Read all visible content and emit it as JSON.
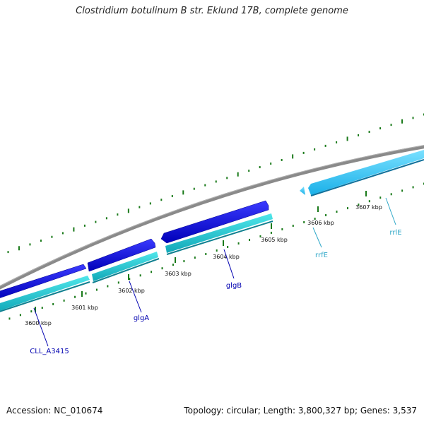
{
  "title": "Clostridium botulinum B str. Eklund 17B, complete genome",
  "footer": {
    "accession": "Accession: NC_010674",
    "summary": "Topology: circular; Length: 3,800,327 bp; Genes: 3,537"
  },
  "colors": {
    "backbone": "#8c8c8c",
    "gene_dark": "#1010e0",
    "gene_cyan": "#20c8d0",
    "rrna": "#40c8f0",
    "ticks": "#1a7a1a",
    "label_gene": "#0000b0",
    "label_rrna": "#30a8c8"
  },
  "ticks": [
    {
      "label": "3600 kbp"
    },
    {
      "label": "3601 kbp"
    },
    {
      "label": "3602 kbp"
    },
    {
      "label": "3603 kbp"
    },
    {
      "label": "3604 kbp"
    },
    {
      "label": "3605 kbp"
    },
    {
      "label": "3606 kbp"
    },
    {
      "label": "3607 kbp"
    }
  ],
  "gene_labels": [
    {
      "text": "CLL_A3415",
      "kind": "gene"
    },
    {
      "text": "glgA",
      "kind": "gene"
    },
    {
      "text": "glgB",
      "kind": "gene"
    },
    {
      "text": "rrfE",
      "kind": "rrna"
    },
    {
      "text": "rrlE",
      "kind": "rrna"
    }
  ]
}
